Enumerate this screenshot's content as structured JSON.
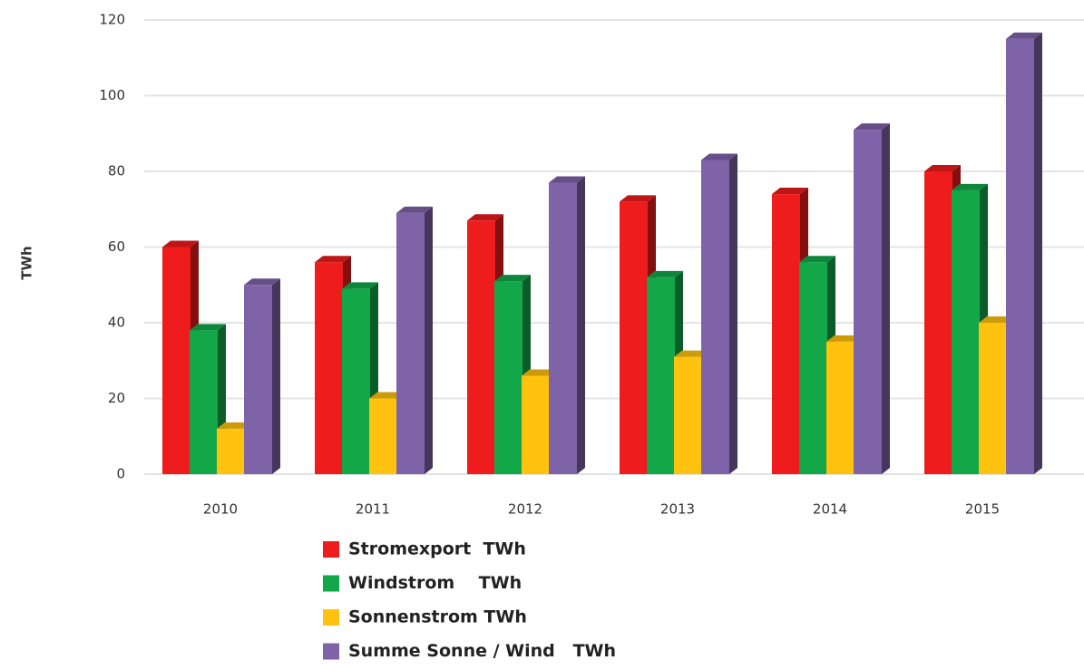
{
  "chart_data": {
    "type": "bar3d",
    "y_label": "TWh",
    "categories": [
      "2010",
      "2011",
      "2012",
      "2013",
      "2014",
      "2015"
    ],
    "series": [
      {
        "name": "Stromexport  TWh",
        "color": "#ee1c1c",
        "values": [
          60,
          56,
          67,
          72,
          74,
          80
        ]
      },
      {
        "name": "Windstrom    TWh",
        "color": "#12a84a",
        "values": [
          38,
          49,
          51,
          52,
          56,
          75
        ]
      },
      {
        "name": "Sonnenstrom TWh",
        "color": "#ffc20e",
        "values": [
          12,
          20,
          26,
          31,
          35,
          40
        ]
      },
      {
        "name": "Summe Sonne / Wind   TWh",
        "color": "#7f63a8",
        "values": [
          50,
          69,
          77,
          83,
          91,
          115
        ]
      }
    ],
    "ylim": [
      0,
      120
    ],
    "yticks": [
      0,
      20,
      40,
      60,
      80,
      100,
      120
    ],
    "grid": true
  }
}
